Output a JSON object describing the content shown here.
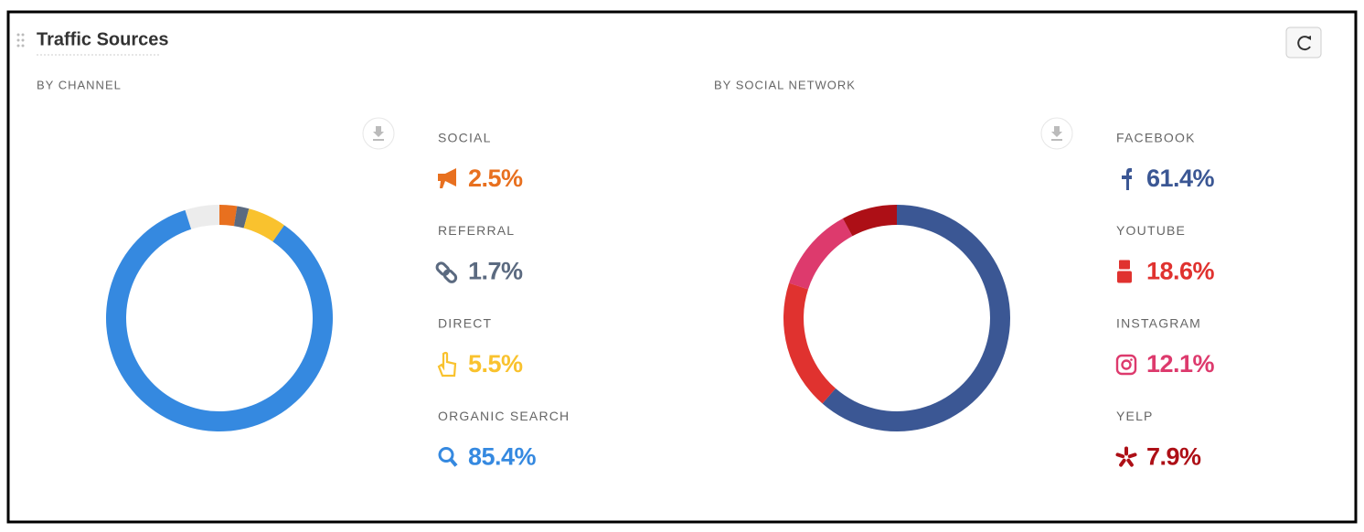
{
  "title": "Traffic Sources",
  "chart_data": [
    {
      "type": "pie",
      "subtitle": "BY CHANNEL",
      "categories": [
        "SOCIAL",
        "REFERRAL",
        "DIRECT",
        "ORGANIC SEARCH"
      ],
      "values": [
        2.5,
        1.7,
        5.5,
        85.4
      ],
      "value_labels": [
        "2.5%",
        "1.7%",
        "5.5%",
        "85.4%"
      ],
      "colors": [
        "#e8701f",
        "#5b6a80",
        "#f9c22e",
        "#3589e0"
      ]
    },
    {
      "type": "pie",
      "subtitle": "BY SOCIAL NETWORK",
      "categories": [
        "FACEBOOK",
        "YOUTUBE",
        "INSTAGRAM",
        "YELP"
      ],
      "values": [
        61.4,
        18.6,
        12.1,
        7.9
      ],
      "value_labels": [
        "61.4%",
        "18.6%",
        "12.1%",
        "7.9%"
      ],
      "colors": [
        "#3b5794",
        "#e0322f",
        "#dd3a6d",
        "#ad0f16"
      ]
    }
  ]
}
